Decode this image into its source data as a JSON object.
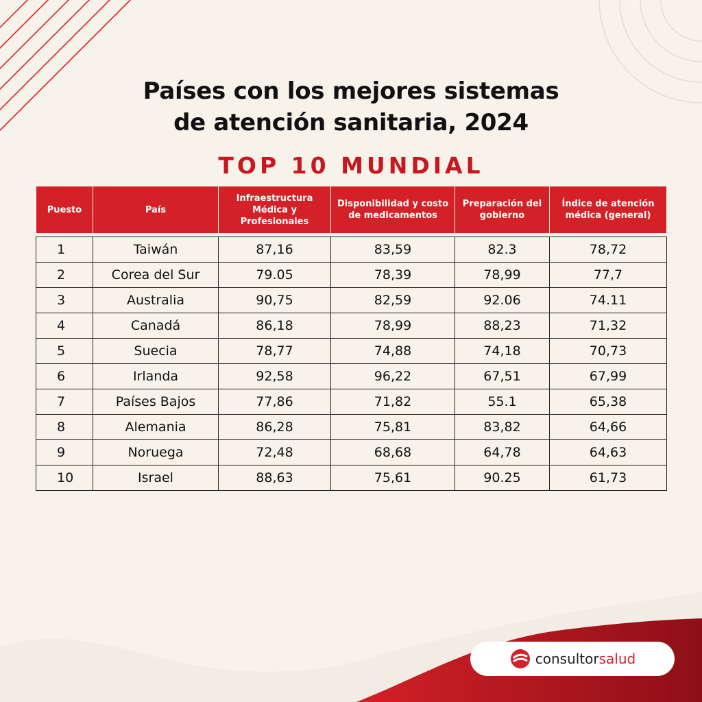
{
  "title": {
    "line1": "Países con los mejores sistemas",
    "line2": "de atención sanitaria, 2024"
  },
  "subtitle": "TOP 10 MUNDIAL",
  "table": {
    "headers": [
      "Puesto",
      "País",
      "Infraestructura Médica y Profesionales",
      "Disponibilidad y costo de medicamentos",
      "Preparación del gobierno",
      "Índice de atención médica (general)"
    ],
    "rows": [
      [
        "1",
        "Taiwán",
        "87,16",
        "83,59",
        "82.3",
        "78,72"
      ],
      [
        "2",
        "Corea del Sur",
        "79.05",
        "78,39",
        "78,99",
        "77,7"
      ],
      [
        "3",
        "Australia",
        "90,75",
        "82,59",
        "92.06",
        "74.11"
      ],
      [
        "4",
        "Canadá",
        "86,18",
        "78,99",
        "88,23",
        "71,32"
      ],
      [
        "5",
        "Suecia",
        "78,77",
        "74,88",
        "74,18",
        "70,73"
      ],
      [
        "6",
        "Irlanda",
        "92,58",
        "96,22",
        "67,51",
        "67,99"
      ],
      [
        "7",
        "Países Bajos",
        "77,86",
        "71,82",
        "55.1",
        "65,38"
      ],
      [
        "8",
        "Alemania",
        "86,28",
        "75,81",
        "83,82",
        "64,66"
      ],
      [
        "9",
        "Noruega",
        "72,48",
        "68,68",
        "64,78",
        "64,63"
      ],
      [
        "10",
        "Israel",
        "88,63",
        "75,61",
        "90.25",
        "61,73"
      ]
    ]
  },
  "logo": {
    "text_main": "consultor",
    "text_accent": "salud",
    "icon": "consultorsalud-logo-icon"
  },
  "colors": {
    "accent": "#d42027",
    "background": "#f7f2ea",
    "text": "#111111"
  }
}
